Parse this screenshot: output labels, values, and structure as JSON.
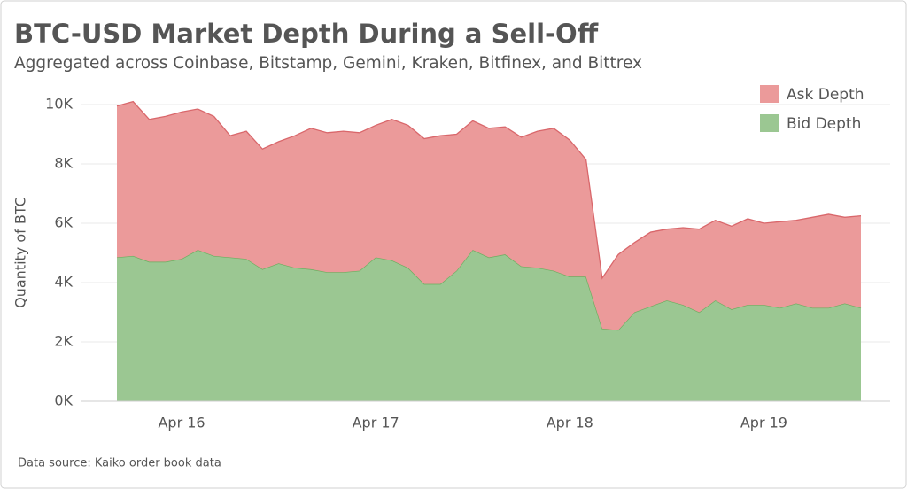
{
  "chart_data": {
    "type": "stacked-area",
    "title": "BTC-USD Market Depth During a Sell-Off",
    "subtitle": "Aggregated across Coinbase, Bitstamp, Gemini, Kraken, Bitfinex, and Bittrex",
    "y_label": "Quantity of BTC",
    "footnote": "Data source: Kaiko order book data",
    "categories": [
      null,
      null,
      null,
      null,
      "Apr 16",
      null,
      null,
      null,
      null,
      null,
      null,
      null,
      null,
      null,
      null,
      null,
      "Apr 17",
      null,
      null,
      null,
      null,
      null,
      null,
      null,
      null,
      null,
      null,
      null,
      "Apr 18",
      null,
      null,
      null,
      null,
      null,
      null,
      null,
      null,
      null,
      null,
      null,
      "Apr 19",
      null,
      null,
      null,
      null,
      null,
      null
    ],
    "series": [
      {
        "name": "Ask Depth",
        "color": "#eb9a9a",
        "line_color": "#d9676b",
        "values": [
          5100,
          5200,
          4800,
          4900,
          4950,
          4750,
          4700,
          4100,
          4300,
          4050,
          4100,
          4450,
          4750,
          4700,
          4750,
          4650,
          4450,
          4750,
          4800,
          4900,
          5000,
          4600,
          4350,
          4350,
          4300,
          4350,
          4600,
          4800,
          4600,
          3950,
          1700,
          2550,
          2350,
          2500,
          2400,
          2600,
          2800,
          2700,
          2800,
          2900,
          2750,
          2900,
          2800,
          3050,
          3150,
          2900,
          3100
        ]
      },
      {
        "name": "Bid Depth",
        "color": "#9bc792",
        "line_color": "#6aae5e",
        "values": [
          4850,
          4900,
          4700,
          4700,
          4800,
          5100,
          4900,
          4850,
          4800,
          4450,
          4650,
          4500,
          4450,
          4350,
          4350,
          4400,
          4850,
          4750,
          4500,
          3950,
          3950,
          4400,
          5100,
          4850,
          4950,
          4550,
          4500,
          4400,
          4200,
          4200,
          2450,
          2400,
          3000,
          3200,
          3400,
          3250,
          3000,
          3400,
          3100,
          3250,
          3250,
          3150,
          3300,
          3150,
          3150,
          3300,
          3150
        ]
      }
    ],
    "ylim": [
      0,
      10000
    ],
    "yticks": [
      {
        "value": 0,
        "label": "0K"
      },
      {
        "value": 2000,
        "label": "2K"
      },
      {
        "value": 4000,
        "label": "4K"
      },
      {
        "value": 6000,
        "label": "6K"
      },
      {
        "value": 8000,
        "label": "8K"
      },
      {
        "value": 10000,
        "label": "10K"
      }
    ],
    "grid": true,
    "legend": "top-right"
  }
}
